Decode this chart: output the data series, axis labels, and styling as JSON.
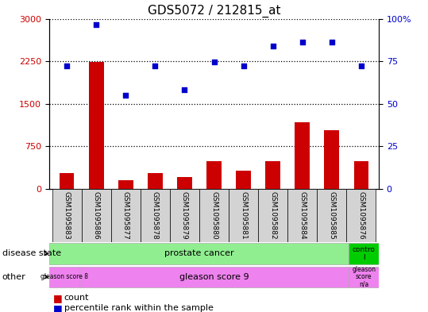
{
  "title": "GDS5072 / 212815_at",
  "samples": [
    "GSM1095883",
    "GSM1095886",
    "GSM1095877",
    "GSM1095878",
    "GSM1095879",
    "GSM1095880",
    "GSM1095881",
    "GSM1095882",
    "GSM1095884",
    "GSM1095885",
    "GSM1095876"
  ],
  "bar_values": [
    270,
    2240,
    150,
    270,
    200,
    490,
    320,
    490,
    1170,
    1030,
    490
  ],
  "dot_values": [
    2170,
    2900,
    1650,
    2170,
    1750,
    2240,
    2170,
    2520,
    2590,
    2590,
    2170
  ],
  "bar_color": "#cc0000",
  "dot_color": "#0000cc",
  "left_ylim": [
    0,
    3000
  ],
  "left_yticks": [
    0,
    750,
    1500,
    2250,
    3000
  ],
  "right_ylim": [
    0,
    100
  ],
  "right_yticks": [
    0,
    25,
    50,
    75,
    100
  ],
  "disease_state_prostate": "prostate cancer",
  "disease_state_control": "contro\nl",
  "other_gleason8": "gleason score 8",
  "other_gleason9": "gleason score 9",
  "other_gleason_na": "gleason\nscore\nn/a",
  "color_prostate": "#90ee90",
  "color_control": "#00cc00",
  "color_gleason8": "#ee82ee",
  "color_gleason9": "#ee82ee",
  "color_gleason_na": "#ee82ee",
  "legend_count": "count",
  "legend_percentile": "percentile rank within the sample",
  "bar_width": 0.5,
  "axis_label_color_left": "#cc0000",
  "axis_label_color_right": "#0000cc"
}
